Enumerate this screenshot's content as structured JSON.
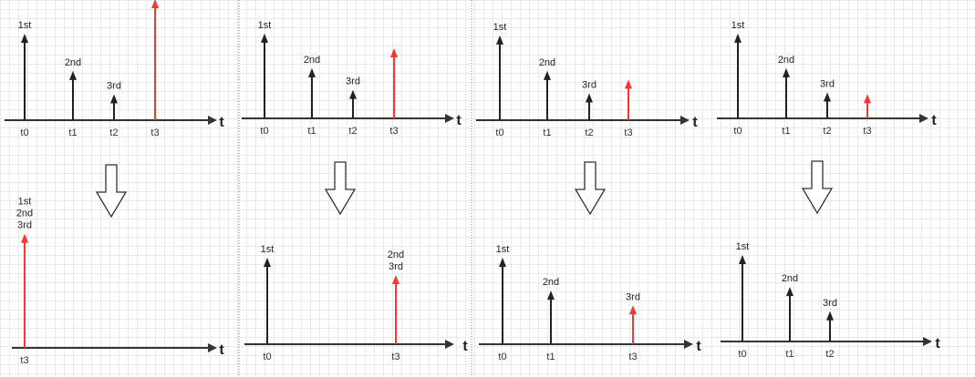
{
  "colors": {
    "axis": "#333333",
    "arrow": "#222222",
    "highlight": "#ff3333",
    "divider": "#888888",
    "down_arrow": "#333333"
  },
  "axis_label": "t",
  "panels": [
    {
      "top": {
        "ticks": [
          "t0",
          "t1",
          "t2",
          "t3"
        ],
        "impulses": [
          {
            "tick": 0,
            "label": "1st",
            "height": 1.0,
            "highlight": false
          },
          {
            "tick": 1,
            "label": "2nd",
            "height": 0.57,
            "highlight": false
          },
          {
            "tick": 2,
            "label": "3rd",
            "height": 0.3,
            "highlight": false
          },
          {
            "tick": 3,
            "label": "",
            "height": 1.4,
            "highlight": true
          }
        ]
      },
      "bottom": {
        "ticks": [
          "t3"
        ],
        "impulses": [
          {
            "tick": 0,
            "label": "1st\n2nd\n3rd",
            "height": 1.32,
            "highlight": true
          }
        ]
      }
    },
    {
      "top": {
        "ticks": [
          "t0",
          "t1",
          "t2",
          "t3"
        ],
        "impulses": [
          {
            "tick": 0,
            "label": "1st",
            "height": 0.98,
            "highlight": false
          },
          {
            "tick": 1,
            "label": "2nd",
            "height": 0.58,
            "highlight": false
          },
          {
            "tick": 2,
            "label": "3rd",
            "height": 0.33,
            "highlight": false
          },
          {
            "tick": 3,
            "label": "",
            "height": 0.81,
            "highlight": true
          }
        ]
      },
      "bottom": {
        "ticks": [
          "t0",
          "t3"
        ],
        "impulses": [
          {
            "tick": 0,
            "label": "1st",
            "height": 1.0,
            "highlight": false
          },
          {
            "tick": 3,
            "label": "2nd\n3rd",
            "height": 0.8,
            "highlight": true
          }
        ]
      }
    },
    {
      "top": {
        "ticks": [
          "t0",
          "t1",
          "t2",
          "t3"
        ],
        "impulses": [
          {
            "tick": 0,
            "label": "1st",
            "height": 0.98,
            "highlight": false
          },
          {
            "tick": 1,
            "label": "2nd",
            "height": 0.57,
            "highlight": false
          },
          {
            "tick": 2,
            "label": "3rd",
            "height": 0.31,
            "highlight": false
          },
          {
            "tick": 3,
            "label": "",
            "height": 0.47,
            "highlight": true
          }
        ]
      },
      "bottom": {
        "ticks": [
          "t0",
          "t1",
          "t3"
        ],
        "impulses": [
          {
            "tick": 0,
            "label": "1st",
            "height": 1.0,
            "highlight": false
          },
          {
            "tick": 1,
            "label": "2nd",
            "height": 0.62,
            "highlight": false
          },
          {
            "tick": 3,
            "label": "3rd",
            "height": 0.45,
            "highlight": true
          }
        ]
      }
    },
    {
      "top": {
        "ticks": [
          "t0",
          "t1",
          "t2",
          "t3"
        ],
        "impulses": [
          {
            "tick": 0,
            "label": "1st",
            "height": 0.98,
            "highlight": false
          },
          {
            "tick": 1,
            "label": "2nd",
            "height": 0.58,
            "highlight": false
          },
          {
            "tick": 2,
            "label": "3rd",
            "height": 0.3,
            "highlight": false
          },
          {
            "tick": 3,
            "label": "",
            "height": 0.28,
            "highlight": true
          }
        ]
      },
      "bottom": {
        "ticks": [
          "t0",
          "t1",
          "t2"
        ],
        "impulses": [
          {
            "tick": 0,
            "label": "1st",
            "height": 1.0,
            "highlight": false
          },
          {
            "tick": 1,
            "label": "2nd",
            "height": 0.63,
            "highlight": false
          },
          {
            "tick": 2,
            "label": "3rd",
            "height": 0.35,
            "highlight": false
          }
        ]
      }
    }
  ]
}
